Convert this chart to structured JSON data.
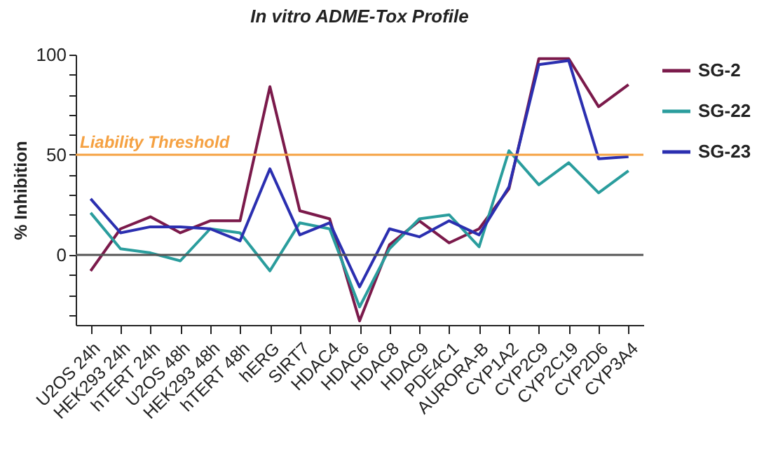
{
  "chart_data": {
    "type": "line",
    "title": "In vitro ADME-Tox Profile",
    "ylabel": "% Inhibition",
    "categories": [
      "U2OS 24h",
      "HEK293 24h",
      "hTERT 24h",
      "U2OS 48h",
      "HEK293 48h",
      "hTERT 48h",
      "hERG",
      "SIRT7",
      "HDAC4",
      "HDAC6",
      "HDAC8",
      "HDAC9",
      "PDE4C1",
      "AURORA-B",
      "CYP1A2",
      "CYP2C9",
      "CYP2C19",
      "CYP2D6",
      "CYP3A4"
    ],
    "series": [
      {
        "name": "SG-2",
        "color": "#7b1a4b",
        "values": [
          -8,
          13,
          19,
          11,
          17,
          17,
          84,
          22,
          18,
          -33,
          5,
          17,
          6,
          13,
          33,
          98,
          98,
          74,
          85
        ]
      },
      {
        "name": "SG-22",
        "color": "#2a9d9d",
        "values": [
          21,
          3,
          1,
          -3,
          13,
          11,
          -8,
          16,
          13,
          -26,
          3,
          18,
          20,
          4,
          52,
          35,
          46,
          31,
          42
        ]
      },
      {
        "name": "SG-23",
        "color": "#2b2fb0",
        "values": [
          28,
          11,
          14,
          14,
          13,
          7,
          43,
          10,
          16,
          -16,
          13,
          9,
          17,
          10,
          34,
          95,
          97,
          48,
          49
        ]
      }
    ],
    "ylim": [
      -35,
      100
    ],
    "yticks": [
      {
        "value": -30,
        "label": null
      },
      {
        "value": -20,
        "label": null
      },
      {
        "value": -10,
        "label": null
      },
      0,
      {
        "value": 10,
        "label": null
      },
      {
        "value": 20,
        "label": null
      },
      {
        "value": 30,
        "label": null
      },
      {
        "value": 40,
        "label": null
      },
      50,
      {
        "value": 60,
        "label": null
      },
      {
        "value": 70,
        "label": null
      },
      {
        "value": 80,
        "label": null
      },
      {
        "value": 90,
        "label": null
      },
      100
    ],
    "ref_lines": [
      {
        "axis": "y",
        "value": 50,
        "label": "Liability Threshold",
        "color": "#f5a142"
      },
      {
        "axis": "y",
        "value": 0,
        "color": "#555555"
      }
    ],
    "grid": false,
    "legend": "top right",
    "marker": "none",
    "line_style": "solid"
  }
}
